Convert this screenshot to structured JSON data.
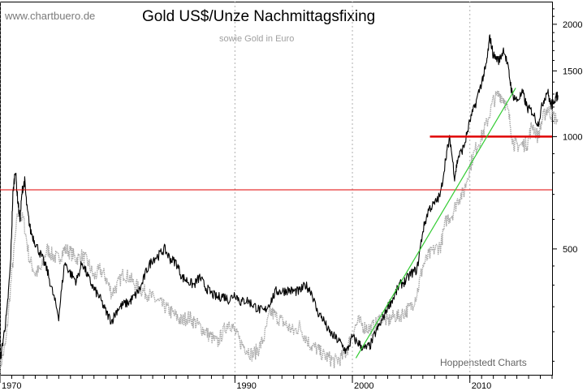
{
  "header": {
    "watermark": "www.chartbuero.de",
    "title": "Gold US$/Unze Nachmittagsfixing",
    "subtitle": "sowie Gold in Euro"
  },
  "footer": {
    "credit": "Hoppenstedt Charts"
  },
  "colors": {
    "usd_series": "#000000",
    "eur_series": "#a8a8a8",
    "grid": "#b0b0b0",
    "red_line": "#e00000",
    "trend_line": "#33cc33"
  },
  "chart_data": {
    "type": "line",
    "title": "Gold US$/Unze Nachmittagsfixing",
    "subtitle": "sowie Gold in Euro",
    "xlabel": "",
    "ylabel": "",
    "y_scale": "log",
    "xlim": [
      1970,
      2017
    ],
    "ylim": [
      230,
      2300
    ],
    "x_ticks": [
      {
        "label": "1970",
        "value": 1970
      },
      {
        "label": "1990",
        "value": 1990
      },
      {
        "label": "2000",
        "value": 2000
      },
      {
        "label": "2010",
        "value": 2010
      }
    ],
    "y_ticks": [
      {
        "label": "500",
        "value": 500
      },
      {
        "label": "1000",
        "value": 1000
      },
      {
        "label": "1500",
        "value": 1500
      },
      {
        "label": "2000",
        "value": 2000
      }
    ],
    "grid": "vertical dotted",
    "series": [
      {
        "key": "usd",
        "color": "#000000",
        "points": [
          [
            1970.0,
            250
          ],
          [
            1970.3,
            290
          ],
          [
            1970.6,
            340
          ],
          [
            1970.9,
            460
          ],
          [
            1971.1,
            700
          ],
          [
            1971.3,
            820
          ],
          [
            1971.5,
            680
          ],
          [
            1971.7,
            600
          ],
          [
            1971.9,
            720
          ],
          [
            1972.1,
            760
          ],
          [
            1972.3,
            640
          ],
          [
            1972.6,
            560
          ],
          [
            1973.0,
            520
          ],
          [
            1973.5,
            480
          ],
          [
            1974.0,
            440
          ],
          [
            1974.5,
            380
          ],
          [
            1975.0,
            330
          ],
          [
            1975.5,
            460
          ],
          [
            1976.0,
            430
          ],
          [
            1976.5,
            410
          ],
          [
            1977.0,
            460
          ],
          [
            1977.5,
            420
          ],
          [
            1978.0,
            390
          ],
          [
            1978.5,
            370
          ],
          [
            1979.0,
            340
          ],
          [
            1979.5,
            320
          ],
          [
            1980.0,
            345
          ],
          [
            1980.5,
            355
          ],
          [
            1981.0,
            360
          ],
          [
            1981.5,
            375
          ],
          [
            1982.0,
            395
          ],
          [
            1982.5,
            440
          ],
          [
            1983.0,
            470
          ],
          [
            1983.5,
            480
          ],
          [
            1984.0,
            500
          ],
          [
            1984.5,
            470
          ],
          [
            1985.0,
            460
          ],
          [
            1985.5,
            420
          ],
          [
            1986.0,
            410
          ],
          [
            1986.5,
            400
          ],
          [
            1987.0,
            420
          ],
          [
            1987.5,
            395
          ],
          [
            1988.0,
            380
          ],
          [
            1988.5,
            370
          ],
          [
            1989.0,
            375
          ],
          [
            1989.5,
            365
          ],
          [
            1990.0,
            380
          ],
          [
            1990.5,
            360
          ],
          [
            1991.0,
            365
          ],
          [
            1991.5,
            355
          ],
          [
            1992.0,
            345
          ],
          [
            1992.5,
            340
          ],
          [
            1993.0,
            360
          ],
          [
            1993.5,
            385
          ],
          [
            1994.0,
            385
          ],
          [
            1994.5,
            388
          ],
          [
            1995.0,
            385
          ],
          [
            1995.5,
            385
          ],
          [
            1996.0,
            400
          ],
          [
            1996.5,
            385
          ],
          [
            1997.0,
            340
          ],
          [
            1997.5,
            325
          ],
          [
            1998.0,
            300
          ],
          [
            1998.5,
            290
          ],
          [
            1999.0,
            280
          ],
          [
            1999.5,
            265
          ],
          [
            2000.0,
            290
          ],
          [
            2000.5,
            280
          ],
          [
            2001.0,
            270
          ],
          [
            2001.5,
            275
          ],
          [
            2002.0,
            300
          ],
          [
            2002.5,
            320
          ],
          [
            2003.0,
            350
          ],
          [
            2003.5,
            370
          ],
          [
            2004.0,
            400
          ],
          [
            2004.5,
            410
          ],
          [
            2005.0,
            430
          ],
          [
            2005.5,
            440
          ],
          [
            2006.0,
            560
          ],
          [
            2006.5,
            640
          ],
          [
            2007.0,
            660
          ],
          [
            2007.5,
            700
          ],
          [
            2008.0,
            900
          ],
          [
            2008.3,
            990
          ],
          [
            2008.7,
            780
          ],
          [
            2009.0,
            880
          ],
          [
            2009.5,
            940
          ],
          [
            2010.0,
            1100
          ],
          [
            2010.5,
            1230
          ],
          [
            2011.0,
            1400
          ],
          [
            2011.4,
            1550
          ],
          [
            2011.7,
            1850
          ],
          [
            2012.0,
            1650
          ],
          [
            2012.5,
            1600
          ],
          [
            2012.9,
            1720
          ],
          [
            2013.3,
            1500
          ],
          [
            2013.6,
            1300
          ],
          [
            2014.0,
            1250
          ],
          [
            2014.5,
            1310
          ],
          [
            2014.9,
            1190
          ],
          [
            2015.3,
            1170
          ],
          [
            2015.8,
            1080
          ],
          [
            2016.2,
            1230
          ],
          [
            2016.6,
            1330
          ],
          [
            2016.9,
            1210
          ],
          [
            2017.2,
            1260
          ],
          [
            2017.5,
            1290
          ]
        ]
      },
      {
        "key": "eur",
        "color": "#a8a8a8",
        "points": [
          [
            1970.0,
            240
          ],
          [
            1970.5,
            280
          ],
          [
            1971.0,
            430
          ],
          [
            1971.5,
            620
          ],
          [
            1972.0,
            600
          ],
          [
            1972.5,
            470
          ],
          [
            1973.0,
            430
          ],
          [
            1973.5,
            440
          ],
          [
            1974.0,
            500
          ],
          [
            1974.5,
            480
          ],
          [
            1975.0,
            470
          ],
          [
            1975.5,
            500
          ],
          [
            1976.0,
            490
          ],
          [
            1976.5,
            470
          ],
          [
            1977.0,
            480
          ],
          [
            1977.5,
            460
          ],
          [
            1978.0,
            420
          ],
          [
            1978.5,
            440
          ],
          [
            1979.0,
            420
          ],
          [
            1979.5,
            380
          ],
          [
            1980.0,
            400
          ],
          [
            1980.5,
            430
          ],
          [
            1981.0,
            420
          ],
          [
            1981.5,
            400
          ],
          [
            1982.0,
            390
          ],
          [
            1982.5,
            380
          ],
          [
            1983.0,
            370
          ],
          [
            1983.5,
            360
          ],
          [
            1984.0,
            350
          ],
          [
            1984.5,
            340
          ],
          [
            1985.0,
            330
          ],
          [
            1985.5,
            320
          ],
          [
            1986.0,
            330
          ],
          [
            1986.5,
            320
          ],
          [
            1987.0,
            310
          ],
          [
            1987.5,
            300
          ],
          [
            1988.0,
            290
          ],
          [
            1988.5,
            280
          ],
          [
            1989.0,
            300
          ],
          [
            1989.5,
            320
          ],
          [
            1990.0,
            300
          ],
          [
            1990.5,
            280
          ],
          [
            1991.0,
            270
          ],
          [
            1991.5,
            260
          ],
          [
            1992.0,
            270
          ],
          [
            1992.5,
            290
          ],
          [
            1993.0,
            340
          ],
          [
            1993.5,
            330
          ],
          [
            1994.0,
            320
          ],
          [
            1994.5,
            310
          ],
          [
            1995.0,
            300
          ],
          [
            1995.5,
            310
          ],
          [
            1996.0,
            290
          ],
          [
            1996.5,
            275
          ],
          [
            1997.0,
            270
          ],
          [
            1997.5,
            260
          ],
          [
            1998.0,
            255
          ],
          [
            1998.5,
            250
          ],
          [
            1999.0,
            255
          ],
          [
            1999.5,
            265
          ],
          [
            2000.0,
            300
          ],
          [
            2000.5,
            320
          ],
          [
            2001.0,
            310
          ],
          [
            2001.5,
            305
          ],
          [
            2002.0,
            315
          ],
          [
            2002.5,
            330
          ],
          [
            2003.0,
            320
          ],
          [
            2003.5,
            330
          ],
          [
            2004.0,
            330
          ],
          [
            2004.5,
            340
          ],
          [
            2005.0,
            350
          ],
          [
            2005.5,
            380
          ],
          [
            2006.0,
            450
          ],
          [
            2006.5,
            480
          ],
          [
            2007.0,
            500
          ],
          [
            2007.5,
            510
          ],
          [
            2008.0,
            600
          ],
          [
            2008.5,
            620
          ],
          [
            2009.0,
            680
          ],
          [
            2009.5,
            710
          ],
          [
            2010.0,
            830
          ],
          [
            2010.5,
            930
          ],
          [
            2011.0,
            1000
          ],
          [
            2011.5,
            1100
          ],
          [
            2012.0,
            1250
          ],
          [
            2012.5,
            1300
          ],
          [
            2012.9,
            1260
          ],
          [
            2013.3,
            1150
          ],
          [
            2013.7,
            960
          ],
          [
            2014.0,
            950
          ],
          [
            2014.5,
            950
          ],
          [
            2014.9,
            960
          ],
          [
            2015.3,
            1080
          ],
          [
            2015.8,
            1000
          ],
          [
            2016.2,
            1120
          ],
          [
            2016.6,
            1190
          ],
          [
            2017.0,
            1140
          ],
          [
            2017.5,
            1110
          ]
        ]
      }
    ],
    "annotations": {
      "horizontal_lines": [
        {
          "key": "thin_red",
          "value": 720,
          "color": "#e00000"
        },
        {
          "key": "thick_red",
          "value": 1000,
          "color": "#e00000",
          "from_x": 2006.6
        }
      ],
      "trend_line": {
        "color": "#33cc33",
        "from": [
          2000.3,
          255
        ],
        "to": [
          2013.9,
          1350
        ]
      }
    }
  }
}
